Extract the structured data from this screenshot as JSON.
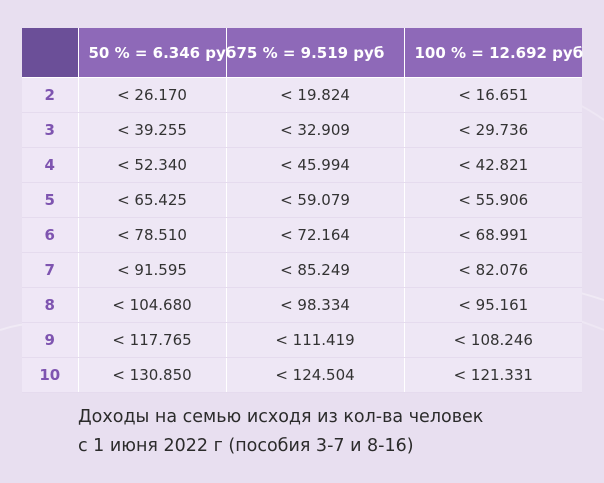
{
  "table": {
    "header": {
      "corner": "",
      "columns": [
        "50 % = 6.346 руб",
        "75 % = 9.519 руб",
        "100 % = 12.692 руб"
      ]
    },
    "rows": [
      {
        "family": "2",
        "values": [
          "< 26.170",
          "< 19.824",
          "< 16.651"
        ]
      },
      {
        "family": "3",
        "values": [
          "< 39.255",
          "< 32.909",
          "< 29.736"
        ]
      },
      {
        "family": "4",
        "values": [
          "< 52.340",
          "< 45.994",
          "< 42.821"
        ]
      },
      {
        "family": "5",
        "values": [
          "< 65.425",
          "< 59.079",
          "< 55.906"
        ]
      },
      {
        "family": "6",
        "values": [
          "< 78.510",
          "< 72.164",
          "< 68.991"
        ]
      },
      {
        "family": "7",
        "values": [
          "< 91.595",
          "< 85.249",
          "< 82.076"
        ]
      },
      {
        "family": "8",
        "values": [
          "< 104.680",
          "< 98.334",
          "< 95.161"
        ]
      },
      {
        "family": "9",
        "values": [
          "< 117.765",
          "< 111.419",
          "< 108.246"
        ]
      },
      {
        "family": "10",
        "values": [
          "< 130.850",
          "< 124.504",
          "< 121.331"
        ]
      }
    ]
  },
  "caption": {
    "line1": "Доходы на семью исходя из кол-ва человек",
    "line2": "с 1 июня 2022 г (пособия 3-7 и 8-16)"
  },
  "colors": {
    "background": "#e8dff0",
    "header": "#8e69b8",
    "corner": "#6b4f98",
    "family_number": "#7e54b0",
    "text": "#333333"
  }
}
